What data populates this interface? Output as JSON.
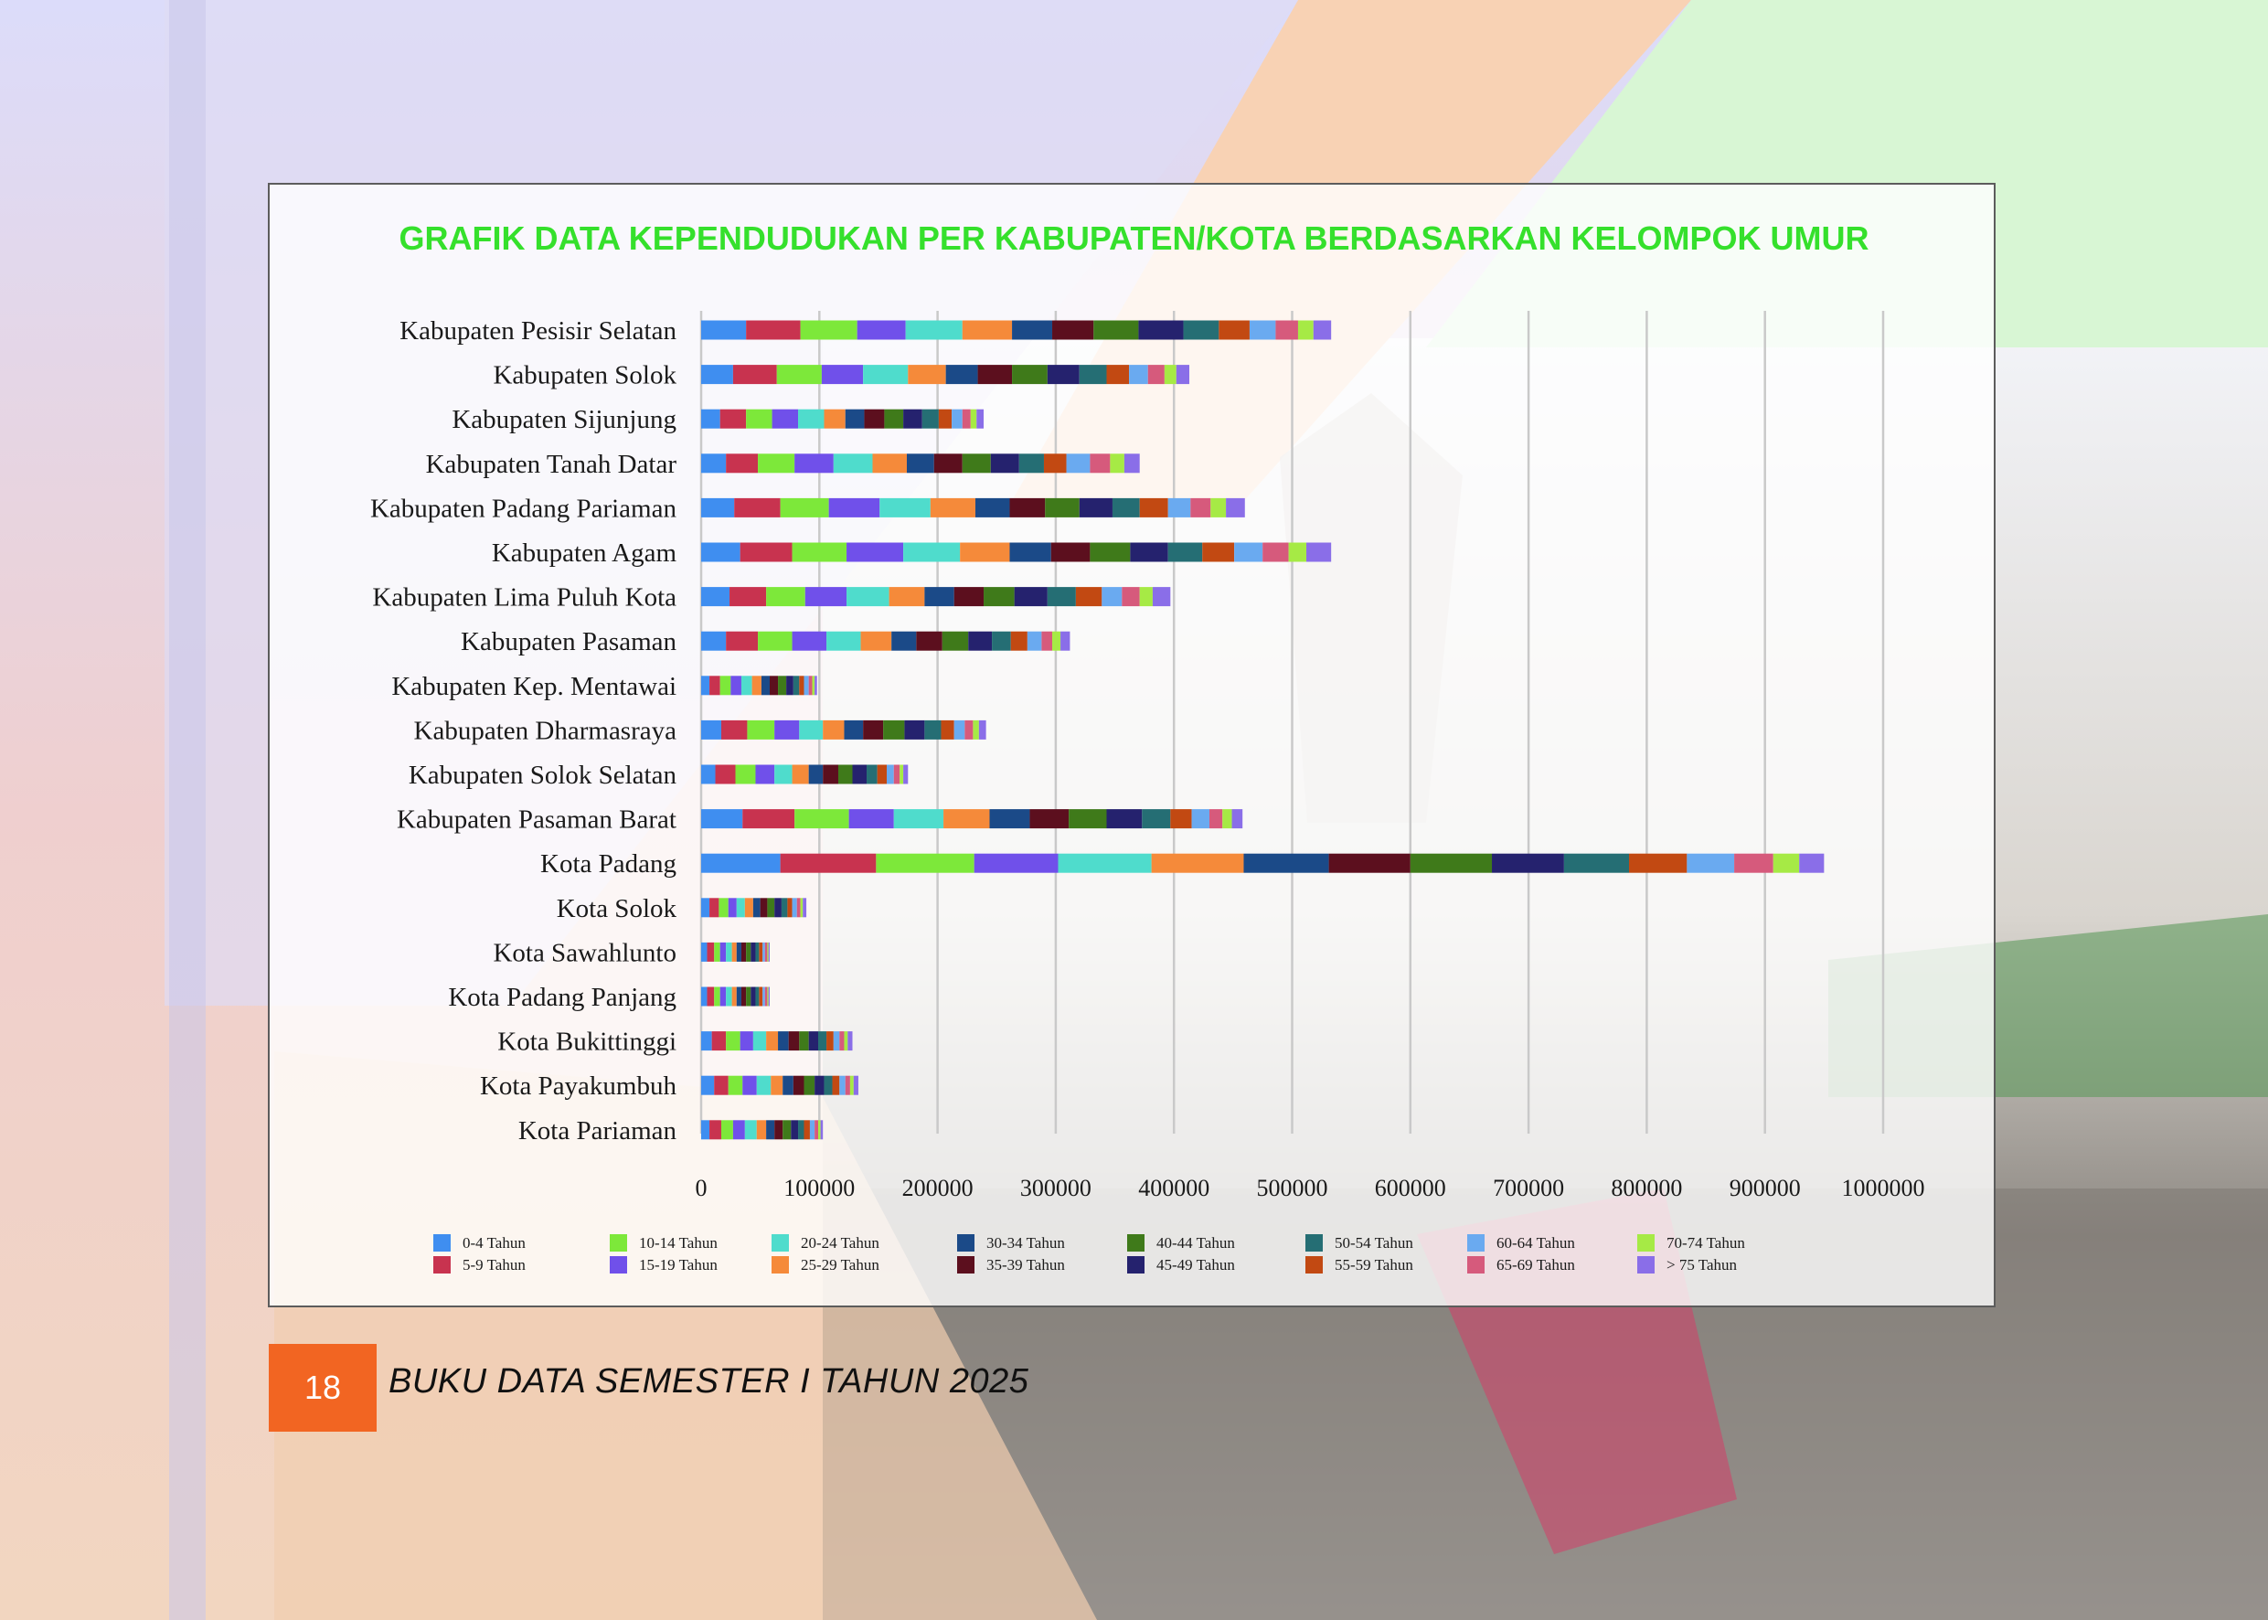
{
  "footer": {
    "page_number": "18",
    "book_title": "BUKU DATA SEMESTER I TAHUN 2025"
  },
  "colors": {
    "title": "#35e02c",
    "page_badge": "#f26522",
    "series": [
      "#3f8ef0",
      "#c8334f",
      "#7de83a",
      "#7050ea",
      "#4fdccc",
      "#f58a3a",
      "#1b4a88",
      "#5c0f1e",
      "#3f7a1a",
      "#25226e",
      "#256e74",
      "#c24912",
      "#6aaaf0",
      "#d65a7c",
      "#a6ea45",
      "#8a6ee8"
    ]
  },
  "chart_data": {
    "type": "bar",
    "orientation": "horizontal",
    "stacked": true,
    "title": "GRAFIK DATA KEPENDUDUKAN PER KABUPATEN/KOTA BERDASARKAN KELOMPOK UMUR",
    "xlabel": "",
    "ylabel": "",
    "xlim": [
      0,
      1000000
    ],
    "x_ticks": [
      "0",
      "100000",
      "200000",
      "300000",
      "400000",
      "500000",
      "600000",
      "700000",
      "800000",
      "900000",
      "1000000"
    ],
    "grid": "vertical",
    "legend_position": "bottom",
    "categories": [
      "Kabupaten Pesisir Selatan",
      "Kabupaten Solok",
      "Kabupaten Sijunjung",
      "Kabupaten Tanah Datar",
      "Kabupaten Padang Pariaman",
      "Kabupaten Agam",
      "Kabupaten Lima Puluh Kota",
      "Kabupaten Pasaman",
      "Kabupaten Kep. Mentawai",
      "Kabupaten Dharmasraya",
      "Kabupaten Solok Selatan",
      "Kabupaten Pasaman Barat",
      "Kota Padang",
      "Kota Solok",
      "Kota Sawahlunto",
      "Kota Padang Panjang",
      "Kota Bukittinggi",
      "Kota Payakumbuh",
      "Kota Pariaman"
    ],
    "series": [
      {
        "name": "0-4 Tahun",
        "values": [
          38000,
          27000,
          16000,
          21000,
          28000,
          33000,
          24000,
          21000,
          7000,
          17000,
          12000,
          35000,
          67000,
          7000,
          5000,
          5000,
          9000,
          11000,
          7000
        ]
      },
      {
        "name": "5-9 Tahun",
        "values": [
          46000,
          37000,
          22000,
          27000,
          39000,
          44000,
          31000,
          27000,
          9000,
          22000,
          17000,
          44000,
          81000,
          8000,
          6000,
          6000,
          12000,
          12000,
          10000
        ]
      },
      {
        "name": "10-14 Tahun",
        "values": [
          48000,
          38000,
          22000,
          31000,
          41000,
          46000,
          33000,
          29000,
          9000,
          23000,
          17000,
          46000,
          83000,
          8000,
          5000,
          5000,
          12000,
          12000,
          10000
        ]
      },
      {
        "name": "15-19 Tahun",
        "values": [
          41000,
          35000,
          22000,
          33000,
          43000,
          48000,
          35000,
          29000,
          9000,
          21000,
          16000,
          38000,
          71000,
          7000,
          5000,
          5000,
          11000,
          12000,
          10000
        ]
      },
      {
        "name": "20-24 Tahun",
        "values": [
          48000,
          38000,
          22000,
          33000,
          43000,
          48000,
          36000,
          29000,
          9000,
          20000,
          15000,
          42000,
          79000,
          7000,
          5000,
          5000,
          11000,
          12000,
          10000
        ]
      },
      {
        "name": "25-29 Tahun",
        "values": [
          42000,
          32000,
          18000,
          29000,
          38000,
          42000,
          30000,
          26000,
          8000,
          18000,
          14000,
          39000,
          78000,
          7000,
          4000,
          4000,
          10000,
          10000,
          8000
        ]
      },
      {
        "name": "30-34 Tahun",
        "values": [
          34000,
          27000,
          16000,
          23000,
          29000,
          35000,
          25000,
          21000,
          7000,
          16000,
          12000,
          34000,
          72000,
          6000,
          4000,
          4000,
          9000,
          9000,
          7000
        ]
      },
      {
        "name": "35-39 Tahun",
        "values": [
          35000,
          29000,
          17000,
          24000,
          30000,
          33000,
          25000,
          22000,
          7000,
          17000,
          13000,
          33000,
          69000,
          6000,
          4000,
          4000,
          9000,
          9000,
          7000
        ]
      },
      {
        "name": "40-44 Tahun",
        "values": [
          38000,
          30000,
          16000,
          24000,
          29000,
          34000,
          26000,
          22000,
          7000,
          18000,
          12000,
          32000,
          69000,
          6000,
          4000,
          4000,
          8000,
          9000,
          7000
        ]
      },
      {
        "name": "45-49 Tahun",
        "values": [
          38000,
          27000,
          16000,
          24000,
          28000,
          32000,
          28000,
          20000,
          6000,
          17000,
          12000,
          30000,
          61000,
          6000,
          4000,
          4000,
          8000,
          8000,
          6000
        ]
      },
      {
        "name": "50-54 Tahun",
        "values": [
          30000,
          23000,
          14000,
          21000,
          23000,
          29000,
          24000,
          16000,
          5000,
          14000,
          9000,
          24000,
          55000,
          5000,
          3000,
          3000,
          7000,
          7000,
          5000
        ]
      },
      {
        "name": "55-59 Tahun",
        "values": [
          26000,
          19000,
          11000,
          19000,
          24000,
          27000,
          22000,
          14000,
          4000,
          11000,
          8000,
          18000,
          49000,
          4000,
          3000,
          3000,
          6000,
          6000,
          5000
        ]
      },
      {
        "name": "60-64 Tahun",
        "values": [
          22000,
          16000,
          9000,
          20000,
          19000,
          24000,
          17000,
          12000,
          4000,
          9000,
          6000,
          15000,
          40000,
          4000,
          2000,
          2000,
          5000,
          5000,
          4000
        ]
      },
      {
        "name": "65-69 Tahun",
        "values": [
          19000,
          14000,
          7000,
          17000,
          17000,
          22000,
          15000,
          9000,
          3000,
          7000,
          5000,
          11000,
          33000,
          3000,
          2000,
          2000,
          4000,
          4000,
          3000
        ]
      },
      {
        "name": "70-74 Tahun",
        "values": [
          13000,
          10000,
          5000,
          12000,
          13000,
          15000,
          11000,
          7000,
          2000,
          5000,
          3000,
          8000,
          22000,
          2000,
          1000,
          1000,
          3000,
          3000,
          2000
        ]
      },
      {
        "name": "> 75 Tahun",
        "values": [
          15000,
          11000,
          6000,
          13000,
          16000,
          21000,
          15000,
          8000,
          2000,
          6000,
          4000,
          9000,
          21000,
          3000,
          1000,
          1000,
          4000,
          4000,
          2000
        ]
      }
    ]
  }
}
